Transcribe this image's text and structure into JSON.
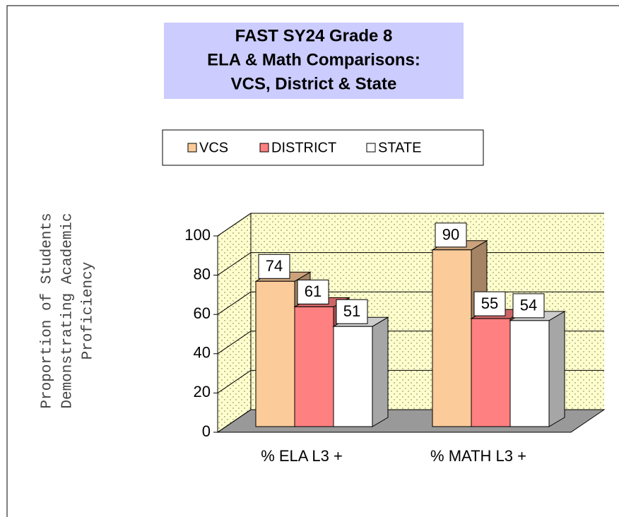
{
  "chart_data": {
    "type": "bar3d",
    "title": [
      "FAST SY24 Grade 8",
      "ELA & Math Comparisons:",
      "VCS, District & State"
    ],
    "ylabel": [
      "Proportion of Students",
      "Demonstrating Academic",
      "Proficiency"
    ],
    "categories": [
      "% ELA L3 +",
      "% MATH L3 +"
    ],
    "series": [
      {
        "name": "VCS",
        "color": "#fccb9a",
        "values": [
          74,
          90
        ]
      },
      {
        "name": "DISTRICT",
        "color": "#ff8080",
        "values": [
          61,
          55
        ]
      },
      {
        "name": "STATE",
        "color": "#ffffff",
        "values": [
          51,
          54
        ]
      }
    ],
    "ylim": [
      0,
      100
    ],
    "yticks": [
      0,
      20,
      40,
      60,
      80,
      100
    ],
    "grid": true
  }
}
